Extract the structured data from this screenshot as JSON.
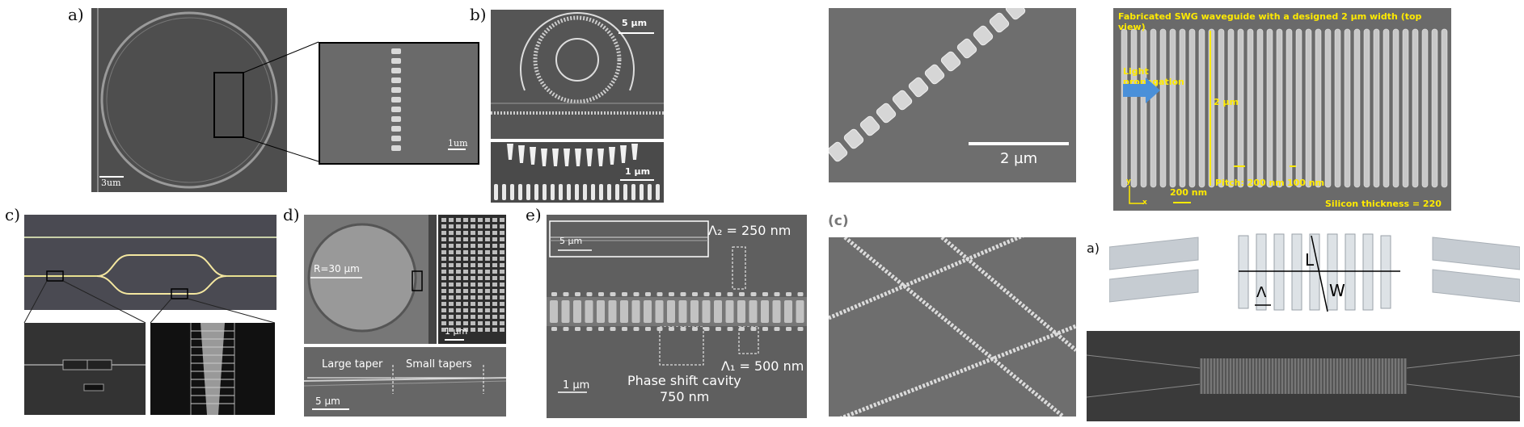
{
  "labels": {
    "a": "a)",
    "b": "b)",
    "c": "c)",
    "d": "d)",
    "e": "e)",
    "c_paren": "(c)",
    "a2": "a)",
    "b2": "b)"
  },
  "panel_a": {
    "scale_main": "3um",
    "scale_inset": "1um"
  },
  "panel_b": {
    "scale_top": "5 µm",
    "scale_bottom": "1 µm"
  },
  "panel_d": {
    "radius": "R=30 µm",
    "scale_inset": "1 µm",
    "large_taper": "Large taper",
    "small_tapers": "Small tapers",
    "scale_bottom": "5 µm"
  },
  "panel_e": {
    "inset_scale": "5 µm",
    "lambda2": "Λ₂ = 250 nm",
    "lambda1": "Λ₁ = 500 nm",
    "cavity_line1": "Phase shift cavity",
    "cavity_line2": "750 nm",
    "scale": "1 µm"
  },
  "panel_sem_diag": {
    "scale": "2 µm"
  },
  "panel_swg": {
    "title": "Fabricated SWG waveguide with a designed 2 µm width (top view)",
    "light1": "Light",
    "light2": "propagation",
    "width": "2 µm",
    "pitch": "Pitch: 200 nm",
    "gap": "100 nm",
    "scale": "200 nm",
    "thickness": "Silicon thickness = 220 nm",
    "axis_y": "y",
    "axis_x": "x"
  },
  "panel_3d": {
    "L": "L",
    "W": "W",
    "Lambda": "Λ"
  },
  "colors": {
    "sem_gray": "#5b5b5b",
    "label_yellow": "#ffea00",
    "arrow_blue": "#4a90d9"
  }
}
